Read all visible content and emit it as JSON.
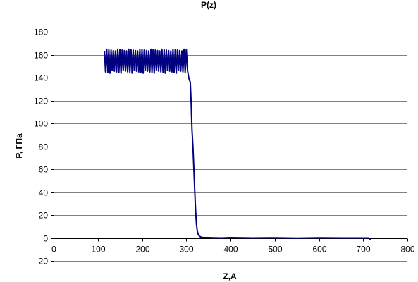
{
  "chart_data": {
    "type": "line",
    "title": "P(z)",
    "xlabel": "Z,A",
    "ylabel": "P, ГПа",
    "xlim": [
      0,
      800
    ],
    "ylim": [
      -20,
      180
    ],
    "x_ticks": [
      0,
      100,
      200,
      300,
      400,
      500,
      600,
      700,
      800
    ],
    "y_ticks": [
      -20,
      0,
      20,
      40,
      60,
      80,
      100,
      120,
      140,
      160,
      180
    ],
    "grid": true,
    "legend": "none",
    "series": [
      {
        "color": "#000080",
        "oscillation": {
          "x_range": [
            115,
            300
          ],
          "upper_envelope": 164,
          "lower_envelope": 145,
          "period": 5
        },
        "x": [
          115,
          140,
          170,
          200,
          230,
          260,
          280,
          295,
          300,
          303,
          305,
          307,
          309,
          310,
          311,
          312,
          313,
          315,
          317,
          319,
          321,
          323,
          325,
          327,
          330,
          333,
          336,
          340,
          345,
          350,
          360,
          380,
          400,
          450,
          500,
          550,
          600,
          650,
          700,
          712,
          716,
          718
        ],
        "y": [
          155,
          155,
          155,
          155,
          155,
          155,
          155,
          153,
          150,
          146,
          141,
          138,
          136,
          128,
          118,
          105,
          94,
          80,
          62,
          42,
          25,
          12,
          6,
          3,
          1.5,
          0.8,
          0.5,
          0.4,
          0.3,
          0.3,
          0.2,
          0,
          0.3,
          0,
          0.2,
          -0.1,
          0.2,
          0,
          0,
          0,
          -1,
          -1.5
        ]
      }
    ]
  }
}
